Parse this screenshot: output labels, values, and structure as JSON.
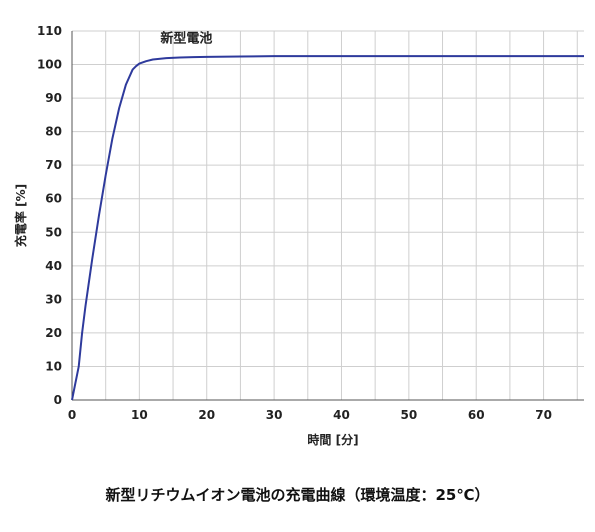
{
  "chart_data": {
    "type": "line",
    "title": "新型リチウムイオン電池の充電曲線（環境温度：25℃）",
    "xlabel": "時間 [分]",
    "ylabel": "充電率 [%]",
    "xlim": [
      0,
      76
    ],
    "ylim": [
      0,
      110
    ],
    "xticks": [
      0,
      10,
      20,
      30,
      40,
      50,
      60,
      70
    ],
    "yticks": [
      0,
      10,
      20,
      30,
      40,
      50,
      60,
      70,
      80,
      90,
      100,
      110
    ],
    "grid": true,
    "legend": "none",
    "series": [
      {
        "name": "新型電池",
        "color": "#2e3a9c",
        "x": [
          0,
          0.5,
          1,
          1.5,
          2,
          3,
          4,
          5,
          6,
          7,
          8,
          9,
          9.5,
          10,
          11,
          12,
          14,
          16,
          18,
          20,
          25,
          30,
          40,
          50,
          60,
          70,
          76
        ],
        "y": [
          0,
          5,
          10,
          20,
          28,
          42,
          55,
          67,
          78,
          87,
          94,
          98.5,
          99.5,
          100.3,
          101,
          101.5,
          101.9,
          102.1,
          102.2,
          102.3,
          102.4,
          102.5,
          102.5,
          102.5,
          102.5,
          102.5,
          102.5
        ]
      }
    ]
  }
}
